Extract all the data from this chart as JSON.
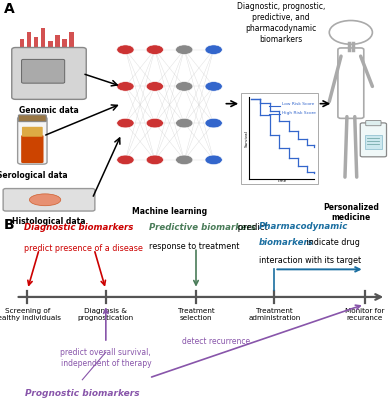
{
  "bg_color": "#ffffff",
  "panel_A_label": "A",
  "panel_B_label": "B",
  "diagnostic_color": "#cc0000",
  "predictive_color": "#4a7c59",
  "pharmacodynamic_color": "#1a6ea0",
  "prognostic_color": "#8855aa",
  "timeline_labels": [
    "Screening of\nhealthy individuals",
    "Diagnosis &\nprognostication",
    "Treatment\nselection",
    "Treatment\nadministration",
    "Monitor for\nrecurance"
  ],
  "section_A_text": "Diagnostic, prognostic,\npredictive, and\npharmacodynamic\nbiomarkers",
  "machine_learning_label": "Machine learning",
  "personalized_label": "Personalized\nmedicine",
  "genomic_label": "Genomic data",
  "serological_label": "Serological data",
  "histological_label": "Histological data",
  "survival_label_low": "Low Risk Score",
  "survival_label_high": "High Risk Score",
  "node_colors_left": [
    "#cc3333",
    "#cc3333",
    "#cc3333",
    "#cc3333"
  ],
  "node_colors_mid": [
    "#cc3333",
    "#cc3333",
    "#cc3333",
    "#cc3333"
  ],
  "node_colors_right": [
    "#3366cc",
    "#3366cc",
    "#3366cc",
    "#3366cc"
  ]
}
